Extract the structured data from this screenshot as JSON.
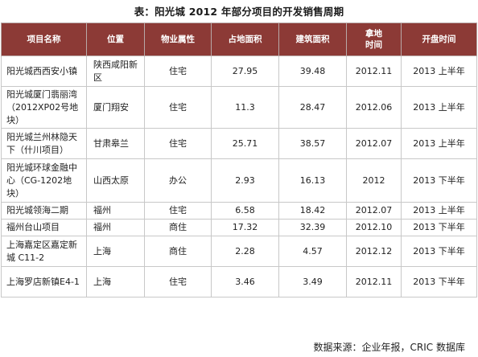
{
  "title": "表：阳光城 2012 年部分项目的开发销售周期",
  "headers": [
    "项目名称",
    "位置",
    "物业属性",
    "占地面积",
    "建筑面积",
    "拿地\n时间",
    "开盘时间"
  ],
  "rows": [
    [
      "阳光城西西安小镇",
      "陕西咸阳新区",
      "住宅",
      "27.95",
      "39.48",
      "2012.11",
      "2013 上半年"
    ],
    [
      "阳光城厦门翡丽湾（2012XP02号地块）",
      "厦门翔安",
      "住宅",
      "11.3",
      "28.47",
      "2012.06",
      "2013 上半年"
    ],
    [
      "阳光城兰州林隐天下（什川项目）",
      "甘肃皋兰",
      "住宅",
      "25.71",
      "38.57",
      "2012.07",
      "2013 上半年"
    ],
    [
      "阳光城环球金融中心（CG-1202地块）",
      "山西太原",
      "办公",
      "2.93",
      "16.13",
      "2012",
      "2013 下半年"
    ],
    [
      "阳光城领海二期",
      "福州",
      "住宅",
      "6.58",
      "18.42",
      "2012.07",
      "2013 上半年"
    ],
    [
      "福州台山项目",
      "福州",
      "商住",
      "17.32",
      "32.39",
      "2012.10",
      "2013 下半年"
    ],
    [
      "上海嘉定区嘉定新城 C11-2",
      "上海",
      "商住",
      "2.28",
      "4.57",
      "2012.12",
      "2013 下半年"
    ],
    [
      "上海罗店新镇E4-1",
      "上海",
      "住宅",
      "3.46",
      "3.49",
      "2012.11",
      "2013 下半年"
    ]
  ],
  "source": "数据来源：企业年报，CRIC 数据库",
  "colors": {
    "header_bg": "#8c3a36",
    "header_text": "#ffffff",
    "border": "#c8c8c8"
  }
}
